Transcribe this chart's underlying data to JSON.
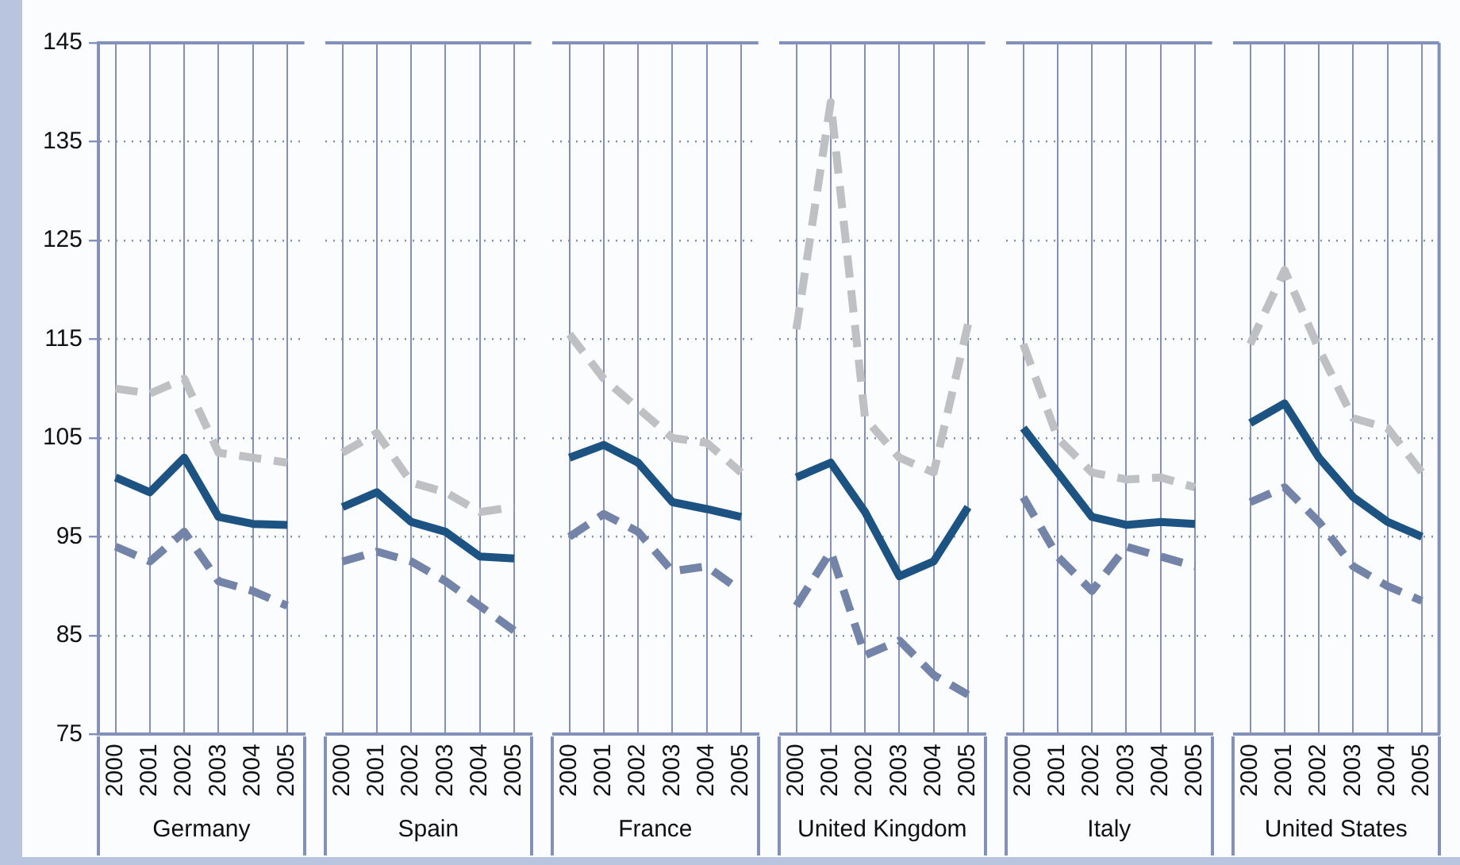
{
  "chart_data": [
    {
      "type": "line",
      "xlabel": "Germany",
      "categories": [
        "2000",
        "2001",
        "2002",
        "2003",
        "2004",
        "2005"
      ],
      "series": [
        {
          "color": "#bfc0c4",
          "line_style": "dashed",
          "values": [
            110,
            109.5,
            111,
            103.5,
            103,
            102.5
          ]
        },
        {
          "color": "#1d5383",
          "line_style": "solid",
          "values": [
            101,
            99.5,
            103,
            97,
            96.3,
            96.2
          ]
        },
        {
          "color": "#7483a8",
          "line_style": "dashed",
          "values": [
            94,
            92.5,
            95.5,
            90.5,
            89.5,
            88
          ]
        }
      ],
      "ylim": [
        75,
        145
      ],
      "yticks": [
        75,
        85,
        95,
        105,
        115,
        125,
        135,
        145
      ],
      "grid": true,
      "legend": false
    },
    {
      "type": "line",
      "xlabel": "Spain",
      "categories": [
        "2000",
        "2001",
        "2002",
        "2003",
        "2004",
        "2005"
      ],
      "series": [
        {
          "color": "#bfc0c4",
          "line_style": "dashed",
          "values": [
            103.5,
            105.5,
            100.5,
            99.5,
            97.5,
            98
          ]
        },
        {
          "color": "#1d5383",
          "line_style": "solid",
          "values": [
            98,
            99.5,
            96.5,
            95.5,
            93,
            92.8
          ]
        },
        {
          "color": "#7483a8",
          "line_style": "dashed",
          "values": [
            92.5,
            93.5,
            92.5,
            90.5,
            88,
            85.5
          ]
        }
      ],
      "ylim": [
        75,
        145
      ],
      "yticks": [
        75,
        85,
        95,
        105,
        115,
        125,
        135,
        145
      ],
      "grid": true,
      "legend": false,
      "tick_labels": "x"
    },
    {
      "type": "line",
      "xlabel": "France",
      "categories": [
        "2000",
        "2001",
        "2002",
        "2003",
        "2004",
        "2005"
      ],
      "series": [
        {
          "color": "#bfc0c4",
          "line_style": "dashed",
          "values": [
            115.5,
            111,
            108,
            105,
            104.5,
            101.5
          ]
        },
        {
          "color": "#1d5383",
          "line_style": "solid",
          "values": [
            103,
            104.3,
            102.5,
            98.5,
            97.8,
            97
          ]
        },
        {
          "color": "#7483a8",
          "line_style": "dashed",
          "values": [
            95,
            97.3,
            95.5,
            91.5,
            92,
            89.5
          ]
        }
      ],
      "ylim": [
        75,
        145
      ],
      "yticks": [
        75,
        85,
        95,
        105,
        115,
        125,
        135,
        145
      ],
      "grid": true,
      "legend": false,
      "tick_labels": "x"
    },
    {
      "type": "line",
      "xlabel": "United Kingdom",
      "categories": [
        "2000",
        "2001",
        "2002",
        "2003",
        "2004",
        "2005"
      ],
      "series": [
        {
          "color": "#bfc0c4",
          "line_style": "dashed",
          "values": [
            116,
            139,
            107,
            103,
            101.5,
            116.5
          ]
        },
        {
          "color": "#1d5383",
          "line_style": "solid",
          "values": [
            101,
            102.5,
            97.5,
            91,
            92.5,
            98
          ]
        },
        {
          "color": "#7483a8",
          "line_style": "dashed",
          "values": [
            88,
            93.5,
            83,
            84.5,
            81,
            79
          ]
        }
      ],
      "ylim": [
        75,
        145
      ],
      "yticks": [
        75,
        85,
        95,
        105,
        115,
        125,
        135,
        145
      ],
      "grid": true,
      "legend": false,
      "tick_labels": "x"
    },
    {
      "type": "line",
      "xlabel": "Italy",
      "categories": [
        "2000",
        "2001",
        "2002",
        "2003",
        "2004",
        "2005"
      ],
      "series": [
        {
          "color": "#bfc0c4",
          "line_style": "dashed",
          "values": [
            114.5,
            105,
            101.5,
            100.8,
            101,
            100
          ]
        },
        {
          "color": "#1d5383",
          "line_style": "solid",
          "values": [
            106,
            101.5,
            97,
            96.2,
            96.5,
            96.3
          ]
        },
        {
          "color": "#7483a8",
          "line_style": "dashed",
          "values": [
            99,
            93,
            89.5,
            94,
            93,
            92
          ]
        }
      ],
      "ylim": [
        75,
        145
      ],
      "yticks": [
        75,
        85,
        95,
        105,
        115,
        125,
        135,
        145
      ],
      "grid": true,
      "legend": false,
      "tick_labels": "x"
    },
    {
      "type": "line",
      "xlabel": "United States",
      "categories": [
        "2000",
        "2001",
        "2002",
        "2003",
        "2004",
        "2005"
      ],
      "series": [
        {
          "color": "#bfc0c4",
          "line_style": "dashed",
          "values": [
            114.5,
            122,
            114,
            107,
            106,
            101.5
          ]
        },
        {
          "color": "#1d5383",
          "line_style": "solid",
          "values": [
            106.5,
            108.5,
            103,
            99,
            96.5,
            95
          ]
        },
        {
          "color": "#7483a8",
          "line_style": "dashed",
          "values": [
            98.5,
            100,
            96.5,
            92,
            90,
            88.5
          ]
        }
      ],
      "ylim": [
        75,
        145
      ],
      "yticks": [
        75,
        85,
        95,
        105,
        115,
        125,
        135,
        145
      ],
      "grid": true,
      "legend": false,
      "tick_labels": "x"
    }
  ]
}
